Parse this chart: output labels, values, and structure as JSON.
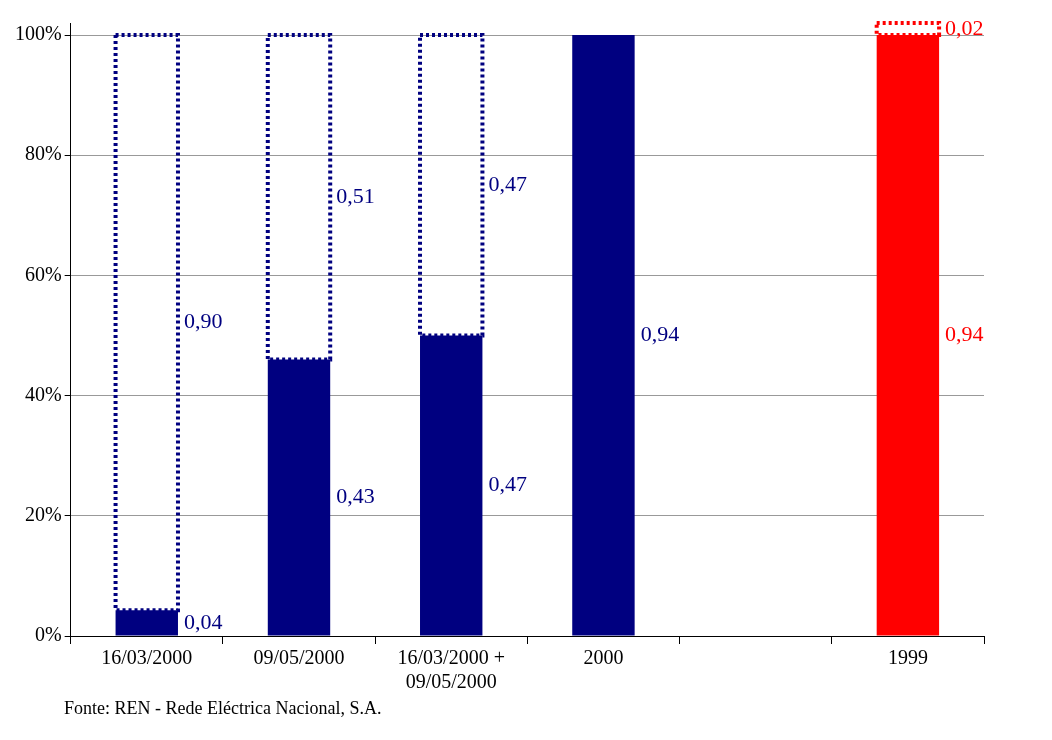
{
  "chart_data": {
    "type": "bar",
    "stacked": true,
    "categories": [
      "16/03/2000",
      "09/05/2000",
      "16/03/2000 + 09/05/2000",
      "2000",
      null,
      "1999"
    ],
    "series": [
      {
        "colors": [
          "#000080",
          "#000080",
          "#000080",
          "#000080",
          null,
          "#ff0000"
        ],
        "values": [
          4.3,
          46,
          50,
          100,
          null,
          100
        ],
        "line_style": "solid"
      },
      {
        "colors": [
          "#000080",
          "#000080",
          "#000080",
          null,
          null,
          "#ff0000"
        ],
        "values": [
          95.7,
          54,
          50,
          null,
          null,
          2
        ],
        "line_style": "dotted"
      }
    ],
    "ylim": [
      0,
      102
    ],
    "yticks": [
      {
        "value": 0,
        "label": "0%"
      },
      {
        "value": 20,
        "label": "20%"
      },
      {
        "value": 40,
        "label": "40%"
      },
      {
        "value": 60,
        "label": "60%"
      },
      {
        "value": 80,
        "label": "80%"
      },
      {
        "value": 100,
        "label": "100%"
      }
    ],
    "grid": "y",
    "legend": false,
    "annotations": [
      "0,04",
      "0,90",
      "0,43",
      "0,51",
      "0,47",
      "0,47",
      "0,94",
      "0,94",
      "0,02",
      "Fonte: REN - Rede Eléctrica Nacional, S.A."
    ]
  }
}
